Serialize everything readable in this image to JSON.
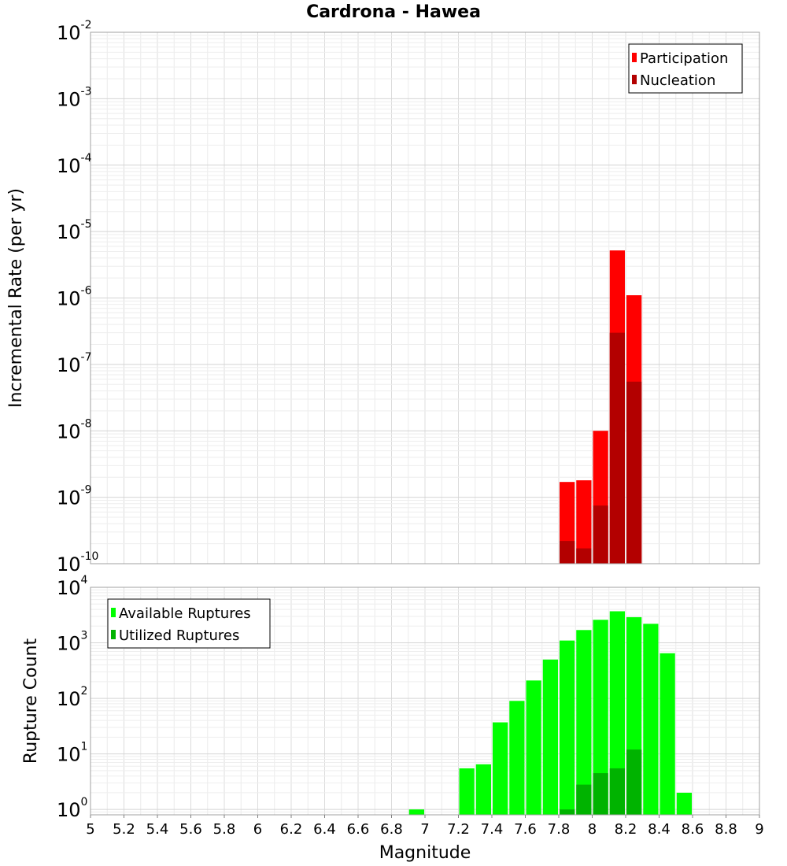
{
  "title": "Cardrona - Hawea",
  "chart_data": [
    {
      "type": "bar",
      "title": "Cardrona - Hawea",
      "ylabel": "Incremental Rate (per yr)",
      "xlabel": "",
      "yscale": "log",
      "ylim": [
        1e-10,
        0.01
      ],
      "xlim": [
        5,
        9
      ],
      "y_ticks": [
        {
          "base": "10",
          "exp": "-2"
        },
        {
          "base": "10",
          "exp": "-3"
        },
        {
          "base": "10",
          "exp": "-4"
        },
        {
          "base": "10",
          "exp": "-5"
        },
        {
          "base": "10",
          "exp": "-6"
        },
        {
          "base": "10",
          "exp": "-7"
        },
        {
          "base": "10",
          "exp": "-8"
        },
        {
          "base": "10",
          "exp": "-9"
        },
        {
          "base": "10",
          "exp": "-10"
        }
      ],
      "legend": {
        "position": "top-right",
        "entries": [
          {
            "label": "Participation",
            "color": "#ff0000"
          },
          {
            "label": "Nucleation",
            "color": "#b30000"
          }
        ]
      },
      "series": [
        {
          "name": "Participation",
          "color": "#ff0000",
          "x": [
            7.85,
            7.95,
            8.05,
            8.15,
            8.25
          ],
          "values": [
            1.7e-09,
            1.8e-09,
            1e-08,
            5.2e-06,
            1.1e-06
          ]
        },
        {
          "name": "Nucleation",
          "color": "#b30000",
          "x": [
            7.85,
            7.95,
            8.05,
            8.15,
            8.25
          ],
          "values": [
            2.2e-10,
            1.7e-10,
            7.5e-10,
            3e-07,
            5.5e-08
          ]
        }
      ]
    },
    {
      "type": "bar",
      "title": "",
      "ylabel": "Rupture Count",
      "xlabel": "Magnitude",
      "yscale": "log",
      "ylim": [
        0.8,
        10000
      ],
      "xlim": [
        5,
        9
      ],
      "y_ticks": [
        {
          "base": "10",
          "exp": "4"
        },
        {
          "base": "10",
          "exp": "3"
        },
        {
          "base": "10",
          "exp": "2"
        },
        {
          "base": "10",
          "exp": "1"
        },
        {
          "base": "10",
          "exp": "0"
        }
      ],
      "x_ticks": [
        "5",
        "5.2",
        "5.4",
        "5.6",
        "5.8",
        "6",
        "6.2",
        "6.4",
        "6.6",
        "6.8",
        "7",
        "7.2",
        "7.4",
        "7.6",
        "7.8",
        "8",
        "8.2",
        "8.4",
        "8.6",
        "8.8",
        "9"
      ],
      "legend": {
        "position": "top-left",
        "entries": [
          {
            "label": "Available Ruptures",
            "color": "#00ff00"
          },
          {
            "label": "Utilized Ruptures",
            "color": "#00b300"
          }
        ]
      },
      "series": [
        {
          "name": "Available Ruptures",
          "color": "#00ff00",
          "x": [
            6.95,
            7.25,
            7.35,
            7.45,
            7.55,
            7.65,
            7.75,
            7.85,
            7.95,
            8.05,
            8.15,
            8.25,
            8.35,
            8.45,
            8.55
          ],
          "values": [
            1,
            5.5,
            6.5,
            37,
            90,
            210,
            500,
            1100,
            1700,
            2600,
            3700,
            2900,
            2200,
            650,
            2
          ]
        },
        {
          "name": "Utilized Ruptures",
          "color": "#00b300",
          "x": [
            7.85,
            7.95,
            8.05,
            8.15,
            8.25
          ],
          "values": [
            1,
            2.8,
            4.5,
            5.5,
            12
          ]
        }
      ]
    }
  ]
}
